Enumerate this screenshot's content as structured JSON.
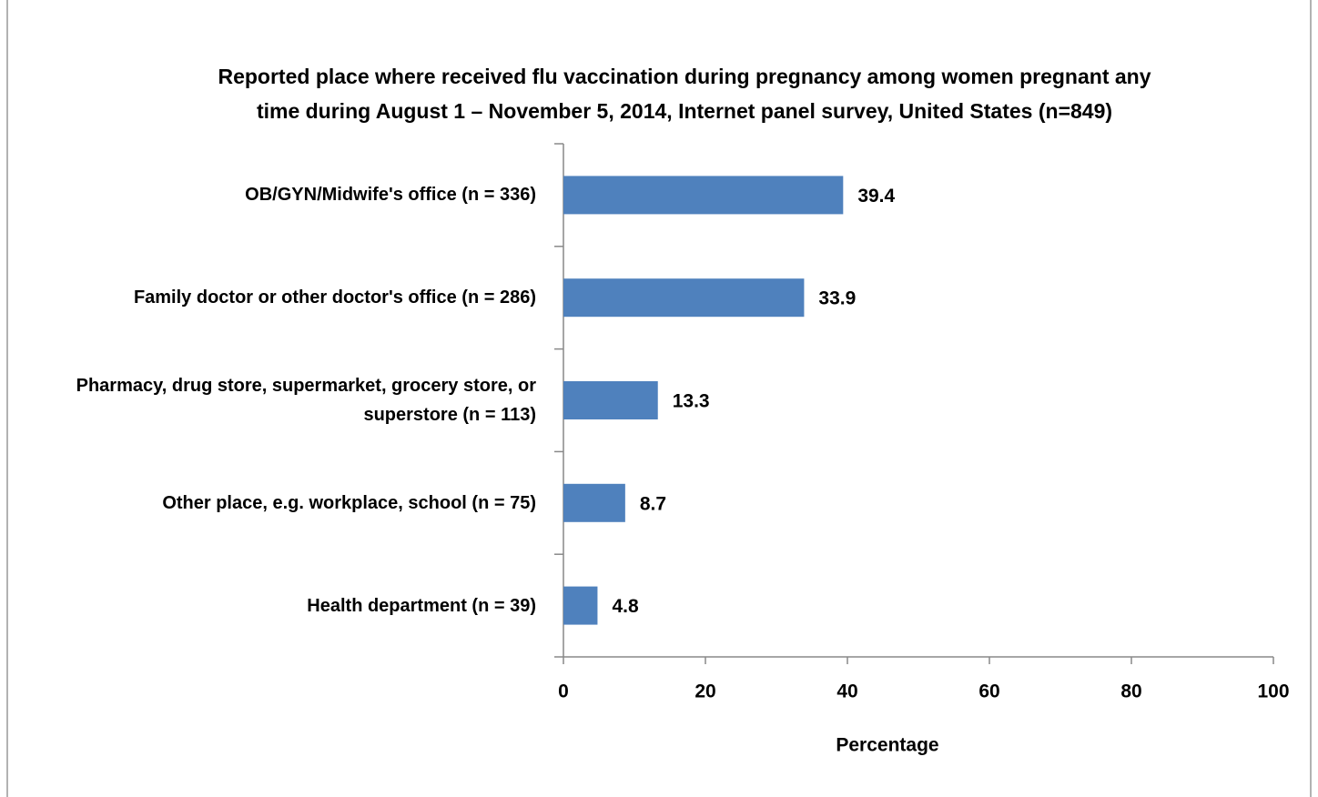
{
  "chart_data": {
    "type": "bar",
    "orientation": "horizontal",
    "title": [
      "Reported place where  received flu vaccination during pregnancy among women pregnant any",
      "time during August 1 – November 5, 2014,  Internet panel survey, United States (n=849)"
    ],
    "categories": [
      "OB/GYN/Midwife's office (n = 336)",
      "Family doctor or other doctor's office (n = 286)",
      "Pharmacy, drug store, supermarket, grocery store, or superstore (n = 113)",
      "Other place, e.g. workplace, school (n = 75)",
      "Health department (n = 39)"
    ],
    "values": [
      39.4,
      33.9,
      13.3,
      8.7,
      4.8
    ],
    "color": "#4f81bd",
    "xlabel": "Percentage",
    "xlim": [
      0,
      100
    ],
    "xticks": [
      0,
      20,
      40,
      60,
      80,
      100
    ]
  }
}
